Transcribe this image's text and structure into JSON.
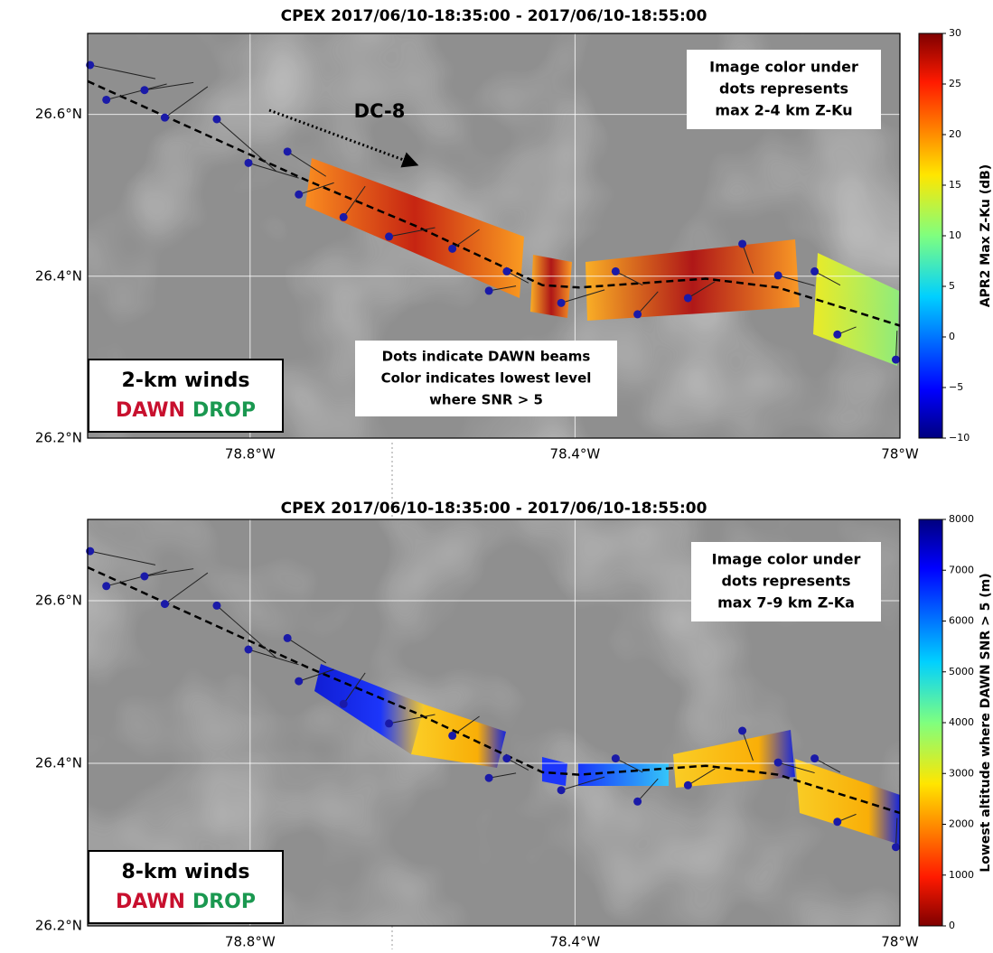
{
  "chart_data": [
    {
      "type": "map",
      "title": "CPEX   2017/06/10-18:35:00 -  2017/06/10-18:55:00",
      "xlim": [
        -79.0,
        -78.0
      ],
      "ylim": [
        26.2,
        26.7
      ],
      "xticks": [
        {
          "value": -78.8,
          "label": "78.8°W"
        },
        {
          "value": -78.4,
          "label": "78.4°W"
        },
        {
          "value": -78.0,
          "label": "78°W"
        }
      ],
      "yticks": [
        {
          "value": 26.2,
          "label": "26.2°N"
        },
        {
          "value": 26.4,
          "label": "26.4°N"
        },
        {
          "value": 26.6,
          "label": "26.6°N"
        }
      ],
      "grid": true,
      "colorbar": {
        "label": "APR2 Max Z-Ku (dB)",
        "lim": [
          -10,
          30
        ],
        "reverse": false,
        "ticks": [
          {
            "value": -10,
            "label": "−10"
          },
          {
            "value": -5,
            "label": "−5"
          },
          0,
          5,
          10,
          15,
          20,
          25,
          30
        ]
      },
      "annotations": {
        "image_color": [
          "Image color under",
          "dots represents",
          "max 2-4 km Z-Ku"
        ],
        "dawn_dots": [
          "Dots indicate DAWN beams",
          "Color indicates lowest level",
          "where SNR > 5"
        ],
        "aircraft": "DC-8"
      },
      "legend": {
        "title": "2-km winds",
        "items": [
          {
            "name": "DAWN",
            "color": "#c8102e"
          },
          {
            "name": "DROP",
            "color": "#1a9850"
          }
        ]
      },
      "track": {
        "x": [
          -79.0,
          -78.729,
          -78.596,
          -78.44,
          -78.395,
          -78.239,
          -78.15,
          -78.0
        ],
        "y": [
          26.641,
          26.518,
          26.462,
          26.389,
          26.386,
          26.397,
          26.386,
          26.339
        ]
      },
      "dots": {
        "color": "#1a1aa8",
        "x": [
          -78.997,
          -78.977,
          -78.93,
          -78.905,
          -78.841,
          -78.802,
          -78.754,
          -78.74,
          -78.685,
          -78.629,
          -78.551,
          -78.506,
          -78.484,
          -78.417,
          -78.35,
          -78.323,
          -78.261,
          -78.194,
          -78.15,
          -78.105,
          -78.077,
          -78.005
        ],
        "y": [
          26.661,
          26.618,
          26.63,
          26.596,
          26.594,
          26.54,
          26.554,
          26.501,
          26.473,
          26.449,
          26.434,
          26.382,
          26.406,
          26.367,
          26.406,
          26.353,
          26.373,
          26.44,
          26.401,
          26.406,
          26.328,
          26.297
        ]
      }
    },
    {
      "type": "map",
      "title": "CPEX   2017/06/10-18:35:00 -  2017/06/10-18:55:00",
      "xlim": [
        -79.0,
        -78.0
      ],
      "ylim": [
        26.2,
        26.7
      ],
      "xticks": [
        {
          "value": -78.8,
          "label": "78.8°W"
        },
        {
          "value": -78.4,
          "label": "78.4°W"
        },
        {
          "value": -78.0,
          "label": "78°W"
        }
      ],
      "yticks": [
        {
          "value": 26.2,
          "label": "26.2°N"
        },
        {
          "value": 26.4,
          "label": "26.4°N"
        },
        {
          "value": 26.6,
          "label": "26.6°N"
        }
      ],
      "grid": true,
      "colorbar": {
        "label": "Lowest altitude where DAWN SNR > 5 (m)",
        "lim": [
          0,
          8000
        ],
        "reverse": true,
        "ticks": [
          0,
          1000,
          2000,
          3000,
          4000,
          5000,
          6000,
          7000,
          8000
        ]
      },
      "annotations": {
        "image_color": [
          "Image color under",
          "dots represents",
          "max 7-9 km Z-Ka"
        ]
      },
      "legend": {
        "title": "8-km winds",
        "items": [
          {
            "name": "DAWN",
            "color": "#c8102e"
          },
          {
            "name": "DROP",
            "color": "#1a9850"
          }
        ]
      },
      "track": {
        "x": [
          -79.0,
          -78.729,
          -78.596,
          -78.44,
          -78.395,
          -78.239,
          -78.15,
          -78.0
        ],
        "y": [
          26.641,
          26.518,
          26.462,
          26.389,
          26.386,
          26.397,
          26.386,
          26.339
        ]
      },
      "dots": {
        "color": "#1a1aa8",
        "x": [
          -78.997,
          -78.977,
          -78.93,
          -78.905,
          -78.841,
          -78.802,
          -78.754,
          -78.74,
          -78.685,
          -78.629,
          -78.551,
          -78.506,
          -78.484,
          -78.417,
          -78.35,
          -78.323,
          -78.261,
          -78.194,
          -78.15,
          -78.105,
          -78.077,
          -78.005
        ],
        "y": [
          26.661,
          26.618,
          26.63,
          26.596,
          26.594,
          26.54,
          26.554,
          26.501,
          26.473,
          26.449,
          26.434,
          26.382,
          26.406,
          26.367,
          26.406,
          26.353,
          26.373,
          26.44,
          26.401,
          26.406,
          26.328,
          26.297
        ]
      }
    }
  ]
}
